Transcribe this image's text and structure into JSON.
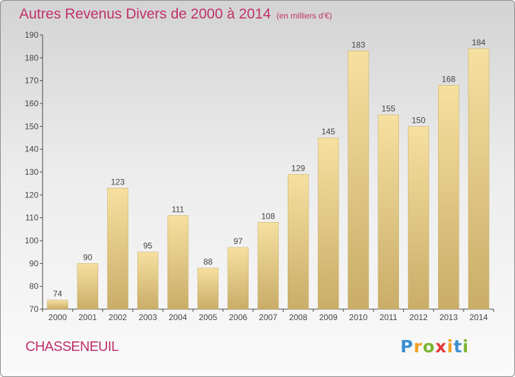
{
  "title": "Autres Revenus Divers de 2000 à 2014",
  "subtitle": "(en milliers d'€)",
  "town": "CHASSENEUIL",
  "logo": {
    "letters": [
      {
        "char": "P",
        "color": "#3b8fd0"
      },
      {
        "char": "r",
        "color": "#f0a020"
      },
      {
        "char": "o",
        "color": "#7ab52e"
      },
      {
        "char": "x",
        "color": "#e23a3a"
      },
      {
        "char": "i",
        "color": "#f0a020"
      },
      {
        "char": "t",
        "color": "#3b8fd0"
      },
      {
        "char": "i",
        "color": "#7ab52e"
      }
    ]
  },
  "chart_data": {
    "type": "bar",
    "title": "Autres Revenus Divers de 2000 à 2014",
    "subtitle": "(en milliers d'€)",
    "categories": [
      "2000",
      "2001",
      "2002",
      "2003",
      "2004",
      "2005",
      "2006",
      "2007",
      "2008",
      "2009",
      "2010",
      "2011",
      "2012",
      "2013",
      "2014"
    ],
    "values": [
      74,
      90,
      123,
      95,
      111,
      88,
      97,
      108,
      129,
      145,
      183,
      155,
      150,
      168,
      184
    ],
    "ylim": [
      70,
      190
    ],
    "yticks": [
      70,
      80,
      90,
      100,
      110,
      120,
      130,
      140,
      150,
      160,
      170,
      180,
      190
    ],
    "grid": false,
    "bar_color_top": "#f6e0a0",
    "bar_color_bottom": "#c9ad68"
  }
}
